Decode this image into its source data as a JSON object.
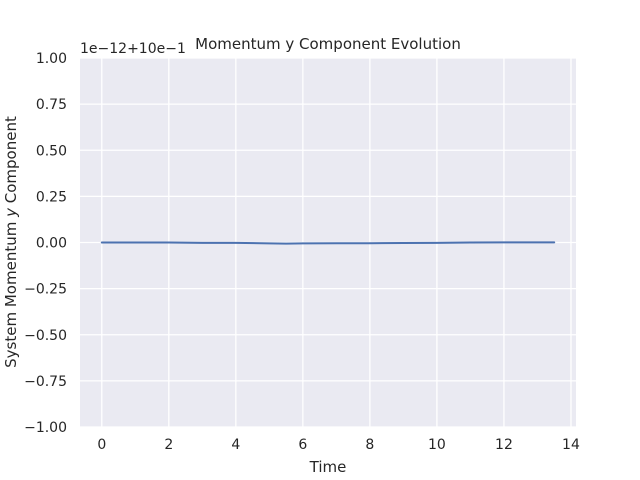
{
  "chart_data": {
    "type": "line",
    "title": "Momentum y Component Evolution",
    "xlabel": "Time",
    "ylabel_parts": {
      "before": "System Momentum ",
      "italic": "y",
      "after": " Component"
    },
    "offset_text": "1e−12+10e−1",
    "xlim": [
      -0.65,
      14.15
    ],
    "ylim": [
      -1.0,
      1.0
    ],
    "x_ticks": [
      0,
      2,
      4,
      6,
      8,
      10,
      12,
      14
    ],
    "x_tick_labels": [
      "0",
      "2",
      "4",
      "6",
      "8",
      "10",
      "12",
      "14"
    ],
    "y_ticks": [
      1.0,
      0.75,
      0.5,
      0.25,
      0.0,
      -0.25,
      -0.5,
      -0.75,
      -1.0
    ],
    "y_tick_labels": [
      "1.00",
      "0.75",
      "0.50",
      "0.25",
      "0.00",
      "−0.25",
      "−0.50",
      "−0.75",
      "−1.00"
    ],
    "grid": true,
    "background_color": "#eaeaf2",
    "grid_color": "#ffffff",
    "series": [
      {
        "color": "#4c72b0",
        "x": [
          0,
          1,
          2,
          3,
          4,
          5,
          5.5,
          6,
          7,
          8,
          9,
          10,
          11,
          12,
          13,
          13.5
        ],
        "y": [
          0.0,
          0.0,
          0.0,
          -0.002,
          -0.002,
          -0.005,
          -0.006,
          -0.005,
          -0.004,
          -0.004,
          -0.003,
          -0.002,
          0.0,
          0.001,
          0.001,
          0.001
        ]
      }
    ]
  }
}
